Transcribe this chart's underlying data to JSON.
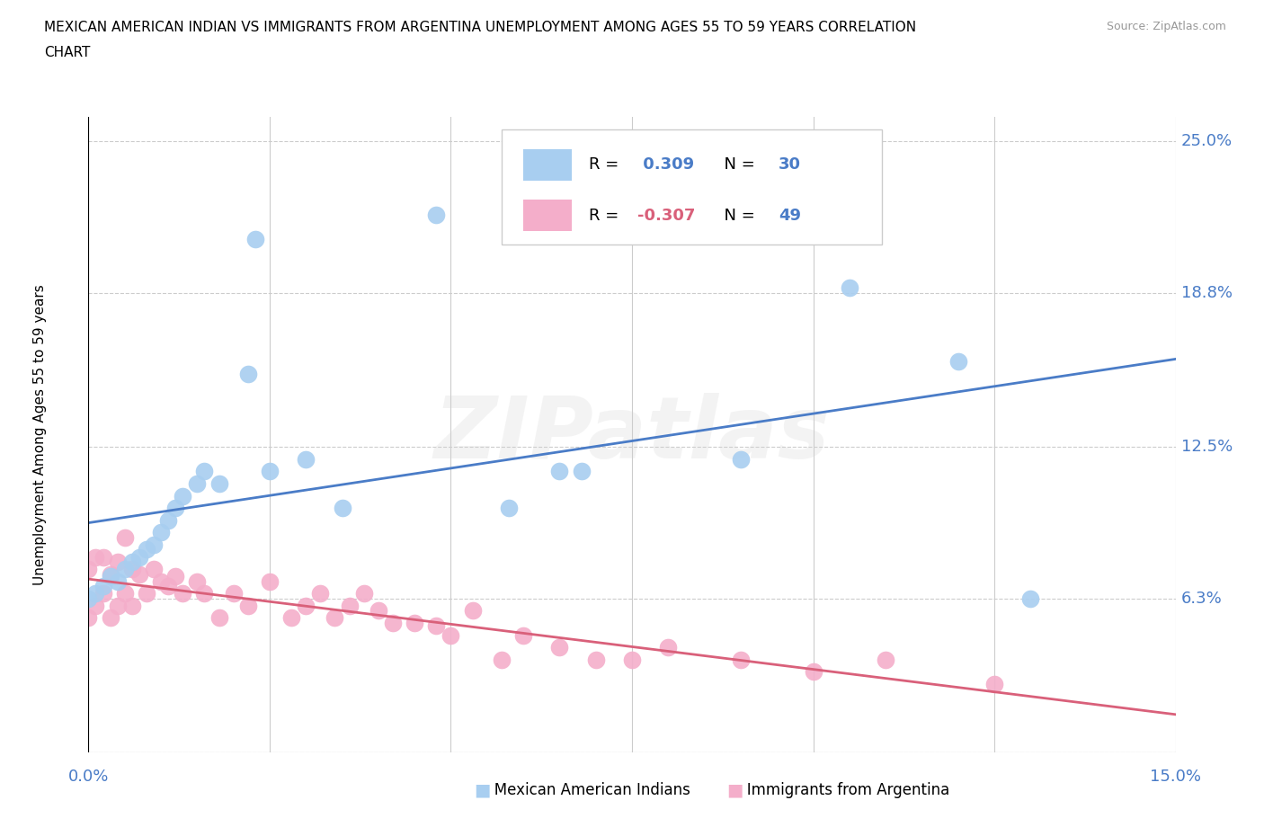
{
  "title_line1": "MEXICAN AMERICAN INDIAN VS IMMIGRANTS FROM ARGENTINA UNEMPLOYMENT AMONG AGES 55 TO 59 YEARS CORRELATION",
  "title_line2": "CHART",
  "source": "Source: ZipAtlas.com",
  "ylabel": "Unemployment Among Ages 55 to 59 years",
  "xlim": [
    0.0,
    0.15
  ],
  "ylim": [
    0.0,
    0.26
  ],
  "yticks": [
    0.0,
    0.063,
    0.125,
    0.188,
    0.25
  ],
  "ytick_labels": [
    "",
    "6.3%",
    "12.5%",
    "18.8%",
    "25.0%"
  ],
  "xticks": [
    0.0,
    0.025,
    0.05,
    0.075,
    0.1,
    0.125,
    0.15
  ],
  "watermark": "ZIPatlas",
  "blue_R": "0.309",
  "blue_N": "30",
  "pink_R": "-0.307",
  "pink_N": "49",
  "blue_color": "#A8CEF0",
  "pink_color": "#F4AECA",
  "blue_line_color": "#4A7CC7",
  "pink_line_color": "#D9607A",
  "axis_label_color": "#4A7CC7",
  "background_color": "#FFFFFF",
  "grid_color": "#CCCCCC",
  "legend_label_color": "#1a3a7a",
  "blue_scatter_x": [
    0.0,
    0.001,
    0.002,
    0.003,
    0.004,
    0.005,
    0.006,
    0.007,
    0.008,
    0.009,
    0.01,
    0.011,
    0.012,
    0.013,
    0.015,
    0.016,
    0.018,
    0.022,
    0.023,
    0.025,
    0.03,
    0.035,
    0.048,
    0.058,
    0.065,
    0.068,
    0.09,
    0.105,
    0.12,
    0.13
  ],
  "blue_scatter_y": [
    0.063,
    0.065,
    0.068,
    0.072,
    0.07,
    0.075,
    0.078,
    0.08,
    0.083,
    0.085,
    0.09,
    0.095,
    0.1,
    0.105,
    0.11,
    0.115,
    0.11,
    0.155,
    0.21,
    0.115,
    0.12,
    0.1,
    0.22,
    0.1,
    0.115,
    0.115,
    0.12,
    0.19,
    0.16,
    0.063
  ],
  "pink_scatter_x": [
    0.0,
    0.0,
    0.001,
    0.001,
    0.002,
    0.002,
    0.003,
    0.003,
    0.004,
    0.004,
    0.005,
    0.005,
    0.006,
    0.006,
    0.007,
    0.008,
    0.009,
    0.01,
    0.011,
    0.012,
    0.013,
    0.015,
    0.016,
    0.018,
    0.02,
    0.022,
    0.025,
    0.028,
    0.03,
    0.032,
    0.034,
    0.036,
    0.038,
    0.04,
    0.042,
    0.045,
    0.048,
    0.05,
    0.053,
    0.057,
    0.06,
    0.065,
    0.07,
    0.075,
    0.08,
    0.09,
    0.1,
    0.11,
    0.125
  ],
  "pink_scatter_y": [
    0.055,
    0.075,
    0.06,
    0.08,
    0.065,
    0.08,
    0.055,
    0.073,
    0.06,
    0.078,
    0.065,
    0.088,
    0.06,
    0.075,
    0.073,
    0.065,
    0.075,
    0.07,
    0.068,
    0.072,
    0.065,
    0.07,
    0.065,
    0.055,
    0.065,
    0.06,
    0.07,
    0.055,
    0.06,
    0.065,
    0.055,
    0.06,
    0.065,
    0.058,
    0.053,
    0.053,
    0.052,
    0.048,
    0.058,
    0.038,
    0.048,
    0.043,
    0.038,
    0.038,
    0.043,
    0.038,
    0.033,
    0.038,
    0.028
  ]
}
